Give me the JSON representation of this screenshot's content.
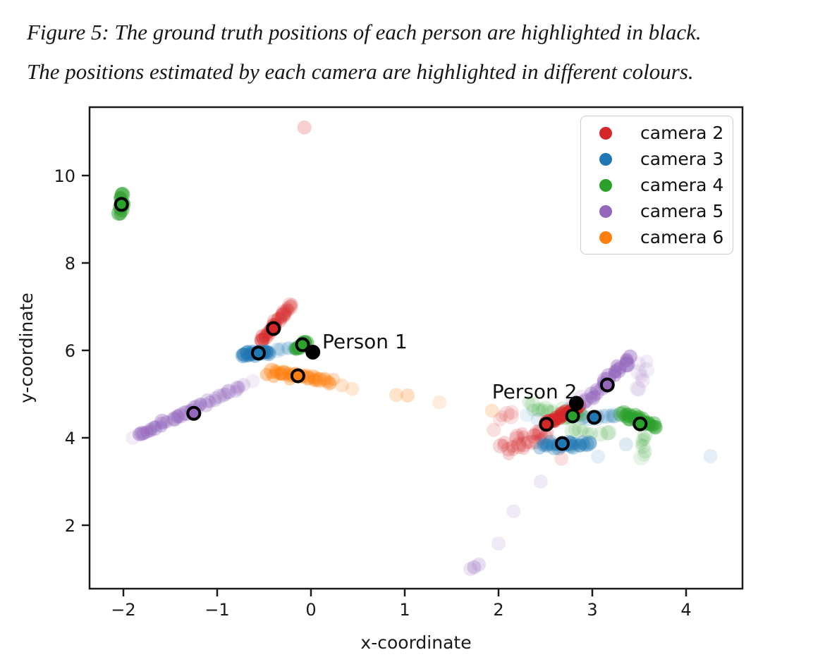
{
  "caption": {
    "line1": "Figure 5: The ground truth positions of each person are highlighted in black.",
    "line2": "The positions estimated by each camera are highlighted in different colours."
  },
  "chart_data": {
    "type": "scatter",
    "xlabel": "x-coordinate",
    "ylabel": "y-coordinate",
    "xlim": [
      -2.36,
      4.6
    ],
    "ylim": [
      0.55,
      11.57
    ],
    "grid": false,
    "legend_position": "upper right",
    "xticks": [
      -2,
      -1,
      0,
      1,
      2,
      3,
      4
    ],
    "xtick_labels": [
      "−2",
      "−1",
      "0",
      "1",
      "2",
      "3",
      "4"
    ],
    "yticks": [
      2,
      4,
      6,
      8,
      10
    ],
    "ytick_labels": [
      "2",
      "4",
      "6",
      "8",
      "10"
    ],
    "legend": [
      {
        "label": "camera 2",
        "color": "#d62728"
      },
      {
        "label": "camera 3",
        "color": "#1f77b4"
      },
      {
        "label": "camera 4",
        "color": "#2ca02c"
      },
      {
        "label": "camera 5",
        "color": "#9467bd"
      },
      {
        "label": "camera 6",
        "color": "#ff7f0e"
      }
    ],
    "annotations": [
      {
        "text": "Person 1",
        "x": 0.12,
        "y": 6.18
      },
      {
        "text": "Person 2",
        "x": 1.93,
        "y": 5.03
      }
    ],
    "ground_truth": [
      {
        "label": "Person 1",
        "x": 0.02,
        "y": 5.96,
        "color": "#000000"
      },
      {
        "label": "Person 2",
        "x": 2.83,
        "y": 4.79,
        "color": "#000000"
      }
    ],
    "estimates": [
      {
        "camera": "camera 2",
        "color": "#d62728",
        "x": -0.4,
        "y": 6.5
      },
      {
        "camera": "camera 3",
        "color": "#1f77b4",
        "x": -0.56,
        "y": 5.94
      },
      {
        "camera": "camera 4",
        "color": "#2ca02c",
        "x": -0.09,
        "y": 6.13
      },
      {
        "camera": "camera 6",
        "color": "#ff7f0e",
        "x": -0.14,
        "y": 5.42
      },
      {
        "camera": "camera 5",
        "color": "#9467bd",
        "x": -1.25,
        "y": 4.56
      },
      {
        "camera": "camera 4",
        "color": "#2ca02c",
        "x": -2.02,
        "y": 9.34
      },
      {
        "camera": "camera 2",
        "color": "#d62728",
        "x": 2.51,
        "y": 4.31
      },
      {
        "camera": "camera 4",
        "color": "#2ca02c",
        "x": 2.79,
        "y": 4.5
      },
      {
        "camera": "camera 3",
        "color": "#1f77b4",
        "x": 3.02,
        "y": 4.47
      },
      {
        "camera": "camera 3",
        "color": "#1f77b4",
        "x": 2.68,
        "y": 3.87
      },
      {
        "camera": "camera 4",
        "color": "#2ca02c",
        "x": 3.51,
        "y": 4.32
      },
      {
        "camera": "camera 5",
        "color": "#9467bd",
        "x": 3.16,
        "y": 5.21
      }
    ],
    "clusters": [
      {
        "camera": "camera 2",
        "color": "#d62728",
        "x1": 2.02,
        "y1": 3.76,
        "x2": 2.52,
        "y2": 4.12,
        "spread": 0.24,
        "n": 26,
        "alpha": 0.19,
        "fade": 0,
        "seed": 13
      },
      {
        "camera": "camera 2",
        "color": "#d62728",
        "x1": 2.0,
        "y1": 4.42,
        "x2": 2.16,
        "y2": 4.62,
        "spread": 0.09,
        "n": 5,
        "alpha": 0.13,
        "fade": 0,
        "seed": 14
      },
      {
        "camera": "camera 4",
        "color": "#2ca02c",
        "x1": 2.3,
        "y1": 4.75,
        "x2": 2.82,
        "y2": 4.55,
        "spread": 0.17,
        "n": 16,
        "alpha": 0.14,
        "fade": 0,
        "seed": 35
      },
      {
        "camera": "camera 4",
        "color": "#2ca02c",
        "x1": 2.72,
        "y1": 4.18,
        "x2": 3.22,
        "y2": 4.08,
        "spread": 0.1,
        "n": 9,
        "alpha": 0.14,
        "fade": 0,
        "seed": 36
      },
      {
        "camera": "camera 5",
        "color": "#9467bd",
        "x1": 2.72,
        "y1": 4.62,
        "x2": 3.0,
        "y2": 4.95,
        "spread": 0.13,
        "n": 9,
        "alpha": 0.14,
        "fade": 0,
        "seed": 44
      },
      {
        "camera": "camera 5",
        "color": "#9467bd",
        "x1": 3.44,
        "y1": 5.05,
        "x2": 3.58,
        "y2": 5.8,
        "spread": 0.1,
        "n": 8,
        "alpha": 0.12,
        "fade": 0,
        "seed": 43
      },
      {
        "camera": "camera 3",
        "color": "#1f77b4",
        "x1": 2.44,
        "y1": 3.8,
        "x2": 2.98,
        "y2": 3.87,
        "spread": 0.11,
        "n": 28,
        "alpha": 0.3,
        "fade": 0,
        "seed": 23
      },
      {
        "camera": "camera 3",
        "color": "#1f77b4",
        "x1": 2.88,
        "y1": 4.44,
        "x2": 3.28,
        "y2": 4.5,
        "spread": 0.07,
        "n": 13,
        "alpha": 0.2,
        "fade": 0.3,
        "seed": 24
      },
      {
        "camera": "camera 4",
        "color": "#2ca02c",
        "x1": 3.57,
        "y1": 4.1,
        "x2": 3.53,
        "y2": 3.55,
        "spread": 0.045,
        "n": 8,
        "alpha": 0.17,
        "fade": 0.4,
        "seed": 34
      },
      {
        "camera": "camera 2",
        "color": "#d62728",
        "x1": -0.53,
        "y1": 6.2,
        "x2": -0.21,
        "y2": 7.08,
        "spread": 0.045,
        "n": 32,
        "alpha": 0.33,
        "fade": 0.5,
        "seed": 11
      },
      {
        "camera": "camera 3",
        "color": "#1f77b4",
        "x1": -0.73,
        "y1": 5.9,
        "x2": -0.44,
        "y2": 5.97,
        "spread": 0.065,
        "n": 24,
        "alpha": 0.38,
        "fade": 0,
        "seed": 21
      },
      {
        "camera": "camera 3",
        "color": "#1f77b4",
        "x1": -0.38,
        "y1": 6.02,
        "x2": -0.13,
        "y2": 6.08,
        "spread": 0.04,
        "n": 7,
        "alpha": 0.14,
        "fade": 0,
        "seed": 22
      },
      {
        "camera": "camera 4",
        "color": "#2ca02c",
        "x1": -2.03,
        "y1": 9.1,
        "x2": -2.0,
        "y2": 9.6,
        "spread": 0.035,
        "n": 12,
        "alpha": 0.5,
        "fade": 0,
        "seed": 31
      },
      {
        "camera": "camera 4",
        "color": "#2ca02c",
        "x1": -0.15,
        "y1": 6.02,
        "x2": -0.06,
        "y2": 6.2,
        "spread": 0.05,
        "n": 10,
        "alpha": 0.5,
        "fade": 0,
        "seed": 32
      },
      {
        "camera": "camera 6",
        "color": "#ff7f0e",
        "x1": -0.45,
        "y1": 5.5,
        "x2": 0.24,
        "y2": 5.3,
        "spread": 0.09,
        "n": 34,
        "alpha": 0.38,
        "fade": 0.35,
        "seed": 51
      },
      {
        "camera": "camera 5",
        "color": "#9467bd",
        "x1": -1.86,
        "y1": 4.04,
        "x2": -0.7,
        "y2": 5.22,
        "spread": 0.06,
        "n": 40,
        "alpha": 0.42,
        "fade": 0.55,
        "seed": 41
      },
      {
        "camera": "camera 4",
        "color": "#2ca02c",
        "x1": 3.3,
        "y1": 4.55,
        "x2": 3.7,
        "y2": 4.25,
        "spread": 0.07,
        "n": 24,
        "alpha": 0.42,
        "fade": 0,
        "seed": 33
      },
      {
        "camera": "camera 4",
        "color": "#2ca02c",
        "x1": 2.72,
        "y1": 4.45,
        "x2": 2.88,
        "y2": 4.56,
        "spread": 0.05,
        "n": 6,
        "alpha": 0.3,
        "fade": 0,
        "seed": 37
      },
      {
        "camera": "camera 2",
        "color": "#d62728",
        "x1": 2.52,
        "y1": 4.33,
        "x2": 2.86,
        "y2": 4.73,
        "spread": 0.05,
        "n": 24,
        "alpha": 0.5,
        "fade": 0,
        "seed": 12
      },
      {
        "camera": "camera 5",
        "color": "#9467bd",
        "x1": 2.93,
        "y1": 4.8,
        "x2": 3.4,
        "y2": 5.86,
        "spread": 0.08,
        "n": 26,
        "alpha": 0.3,
        "fade": -0.5,
        "seed": 42
      }
    ],
    "outliers": [
      {
        "color": "#d62728",
        "x": -0.07,
        "y": 11.1,
        "alpha": 0.22
      },
      {
        "color": "#d62728",
        "x": 1.95,
        "y": 4.18,
        "alpha": 0.15
      },
      {
        "color": "#d62728",
        "x": 2.67,
        "y": 3.52,
        "alpha": 0.15
      },
      {
        "color": "#1f77b4",
        "x": 2.3,
        "y": 4.52,
        "alpha": 0.1
      },
      {
        "color": "#1f77b4",
        "x": 2.42,
        "y": 4.42,
        "alpha": 0.12
      },
      {
        "color": "#1f77b4",
        "x": 3.36,
        "y": 3.85,
        "alpha": 0.15
      },
      {
        "color": "#1f77b4",
        "x": 3.06,
        "y": 3.57,
        "alpha": 0.12
      },
      {
        "color": "#1f77b4",
        "x": 4.26,
        "y": 3.58,
        "alpha": 0.12
      },
      {
        "color": "#ff7f0e",
        "x": 0.33,
        "y": 5.2,
        "alpha": 0.2
      },
      {
        "color": "#ff7f0e",
        "x": 0.44,
        "y": 5.12,
        "alpha": 0.18
      },
      {
        "color": "#ff7f0e",
        "x": 0.91,
        "y": 4.98,
        "alpha": 0.22
      },
      {
        "color": "#ff7f0e",
        "x": 1.03,
        "y": 4.97,
        "alpha": 0.25
      },
      {
        "color": "#ff7f0e",
        "x": 1.37,
        "y": 4.81,
        "alpha": 0.15
      },
      {
        "color": "#ff7f0e",
        "x": 1.93,
        "y": 4.62,
        "alpha": 0.2
      },
      {
        "color": "#9467bd",
        "x": -0.62,
        "y": 5.3,
        "alpha": 0.12
      },
      {
        "color": "#9467bd",
        "x": -1.9,
        "y": 4.0,
        "alpha": 0.12
      },
      {
        "color": "#9467bd",
        "x": 2.45,
        "y": 3.0,
        "alpha": 0.14
      },
      {
        "color": "#9467bd",
        "x": 2.16,
        "y": 2.32,
        "alpha": 0.14
      },
      {
        "color": "#9467bd",
        "x": 2.0,
        "y": 1.58,
        "alpha": 0.14
      },
      {
        "color": "#9467bd",
        "x": 1.79,
        "y": 1.1,
        "alpha": 0.22
      },
      {
        "color": "#9467bd",
        "x": 1.74,
        "y": 1.04,
        "alpha": 0.28
      },
      {
        "color": "#9467bd",
        "x": 1.7,
        "y": 1.0,
        "alpha": 0.18
      }
    ]
  }
}
